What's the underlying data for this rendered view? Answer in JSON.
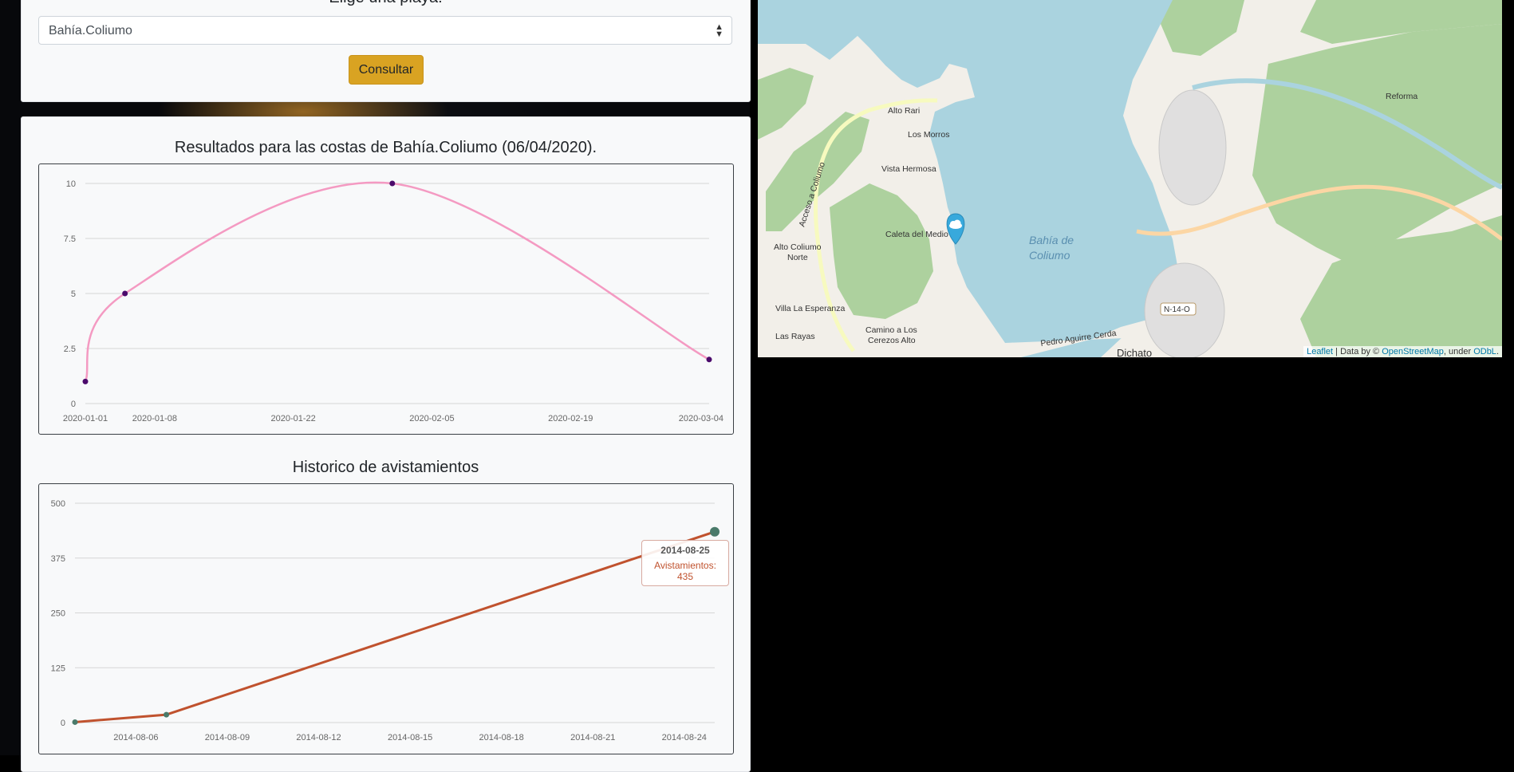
{
  "selector": {
    "label": "Elige una playa:",
    "selected": "Bahía.Coliumo",
    "button_label": "Consultar"
  },
  "chart1": {
    "title": "Resultados para las costas de Bahía.Coliumo (06/04/2020)."
  },
  "chart2": {
    "title": "Historico de avistamientos",
    "tooltip": {
      "date": "2014-08-25",
      "text": "Avistamientos: 435"
    }
  },
  "map": {
    "labels": {
      "alto_rari": "Alto Rari",
      "los_morros": "Los Morros",
      "vista_hermosa": "Vista Hermosa",
      "caleta_del_medio": "Caleta del Medio",
      "alto_coliumo_1": "Alto Coliumo",
      "alto_coliumo_2": "Norte",
      "villa_la_esperanza": "Villa La Esperanza",
      "las_rayas": "Las Rayas",
      "camino_1": "Camino a Los",
      "camino_2": "Cerezos Alto",
      "bahia_1": "Bahía de",
      "bahia_2": "Coliumo",
      "acceso": "Acceso a Coliumo",
      "pedro_aguirre": "Pedro Aguirre Cerda",
      "dichato": "Dichato",
      "reforma": "Reforma",
      "route": "N-14-O"
    },
    "attribution": {
      "leaflet": "Leaflet",
      "sep": " | Data by © ",
      "osm": "OpenStreetMap",
      "under": ", under ",
      "odbl": "ODbL",
      "end": "."
    },
    "marker_icon": "cloud-icon"
  },
  "colors": {
    "accent_button": "#d9a322",
    "chart1_line": "#f49ac2",
    "chart1_point": "#4b0a6b",
    "chart2_line": "#c0522e",
    "chart2_point": "#4a7a6a",
    "water": "#aad3df",
    "land": "#f2efe9",
    "forest": "#add19e"
  },
  "chart_data": [
    {
      "type": "line",
      "title": "Resultados para las costas de Bahía.Coliumo (06/04/2020).",
      "x_tick_labels": [
        "2020-01-01",
        "2020-01-08",
        "2020-01-22",
        "2020-02-05",
        "2020-02-19",
        "2020-03-04"
      ],
      "y_tick_labels": [
        "0",
        "2.5",
        "5",
        "7.5",
        "10"
      ],
      "ylim": [
        0,
        10
      ],
      "xlim": [
        "2020-01-01",
        "2020-03-04"
      ],
      "series": [
        {
          "points": [
            {
              "x": "2020-01-01",
              "y": 1
            },
            {
              "x": "2020-01-05",
              "y": 5
            },
            {
              "x": "2020-02-01",
              "y": 10
            },
            {
              "x": "2020-03-04",
              "y": 2
            }
          ]
        }
      ],
      "grid": true,
      "curve": "smooth"
    },
    {
      "type": "line",
      "title": "Historico de avistamientos",
      "x_tick_labels": [
        "2014-08-06",
        "2014-08-09",
        "2014-08-12",
        "2014-08-15",
        "2014-08-18",
        "2014-08-21",
        "2014-08-24"
      ],
      "y_tick_labels": [
        "0",
        "125",
        "250",
        "375",
        "500"
      ],
      "ylim": [
        0,
        500
      ],
      "xlim": [
        "2014-08-04",
        "2014-08-25"
      ],
      "series": [
        {
          "points": [
            {
              "x": "2014-08-04",
              "y": 1
            },
            {
              "x": "2014-08-07",
              "y": 18
            },
            {
              "x": "2014-08-25",
              "y": 435
            }
          ]
        }
      ],
      "grid": true
    }
  ]
}
